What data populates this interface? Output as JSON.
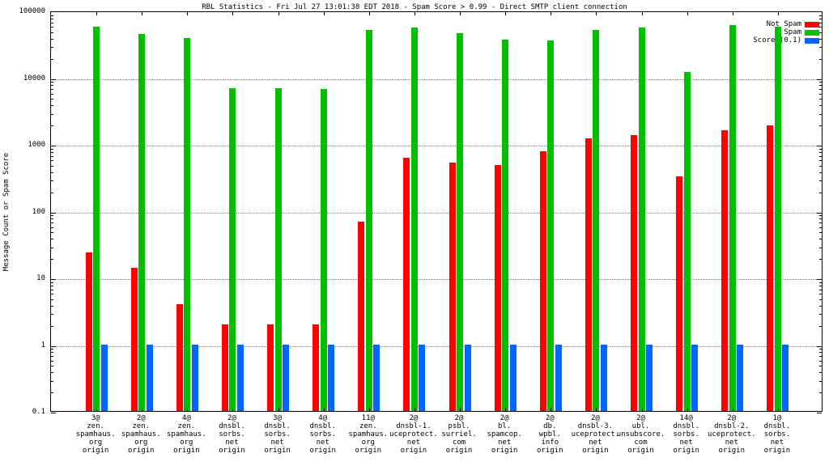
{
  "title": "RBL Statistics - Fri Jul 27 13:01:38 EDT 2018 - Spam Score > 0.99 - Direct SMTP client connection",
  "y_axis": {
    "label": "Message Count or Spam Score",
    "ticks": [
      "100000",
      "10000",
      "1000",
      "100",
      "10",
      "1",
      "0.1"
    ]
  },
  "legend": [
    {
      "label": "Not Spam",
      "color": "#ff0000"
    },
    {
      "label": "Spam",
      "color": "#00c000"
    },
    {
      "label": "Score (0.1)",
      "color": "#0066ff"
    }
  ],
  "colors": {
    "grid": "#7f7f7f",
    "axis": "#000000"
  },
  "chart_data": {
    "type": "bar",
    "scale": "log",
    "ylim": [
      0.1,
      100000
    ],
    "grid": true,
    "legend_position": "top-right",
    "ylabel": "Message Count or Spam Score",
    "title": "RBL Statistics - Fri Jul 27 13:01:38 EDT 2018 - Spam Score > 0.99 - Direct SMTP client connection",
    "categories": [
      [
        "3@",
        "zen.",
        "spamhaus.",
        "org",
        "origin"
      ],
      [
        "2@",
        "zen.",
        "spamhaus.",
        "org",
        "origin"
      ],
      [
        "4@",
        "zen.",
        "spamhaus.",
        "org",
        "origin"
      ],
      [
        "2@",
        "dnsbl.",
        "sorbs.",
        "net",
        "origin"
      ],
      [
        "3@",
        "dnsbl.",
        "sorbs.",
        "net",
        "origin"
      ],
      [
        "4@",
        "dnsbl.",
        "sorbs.",
        "net",
        "origin"
      ],
      [
        "11@",
        "zen.",
        "spamhaus.",
        "org",
        "origin"
      ],
      [
        "2@",
        "dnsbl-1.",
        "uceprotect.",
        "net",
        "origin"
      ],
      [
        "2@",
        "psbl.",
        "surriel.",
        "com",
        "origin"
      ],
      [
        "2@",
        "bl.",
        "spamcop.",
        "net",
        "origin"
      ],
      [
        "2@",
        "db.",
        "wpbl.",
        "info",
        "origin"
      ],
      [
        "2@",
        "dnsbl-3.",
        "uceprotect.",
        "net",
        "origin"
      ],
      [
        "2@",
        "ubl.",
        "unsubscore.",
        "com",
        "origin"
      ],
      [
        "14@",
        "dnsbl.",
        "sorbs.",
        "net",
        "origin"
      ],
      [
        "2@",
        "dnsbl-2.",
        "uceprotect.",
        "net",
        "origin"
      ],
      [
        "1@",
        "dnsbl.",
        "sorbs.",
        "net",
        "origin"
      ]
    ],
    "series": [
      {
        "name": "Not Spam",
        "color": "#ff0000",
        "values": [
          24,
          14,
          4,
          2,
          2,
          2,
          68,
          620,
          520,
          480,
          780,
          1200,
          1350,
          330,
          1600,
          1900
        ]
      },
      {
        "name": "Spam",
        "color": "#00c000",
        "values": [
          58000,
          45000,
          39000,
          6800,
          6800,
          6700,
          51000,
          56000,
          46000,
          37000,
          36000,
          51000,
          55000,
          12000,
          60000,
          57000
        ]
      },
      {
        "name": "Score (0.1)",
        "color": "#0066ff",
        "values": [
          1,
          1,
          1,
          1,
          1,
          1,
          1,
          1,
          1,
          1,
          1,
          1,
          1,
          1,
          1,
          1
        ]
      }
    ]
  }
}
